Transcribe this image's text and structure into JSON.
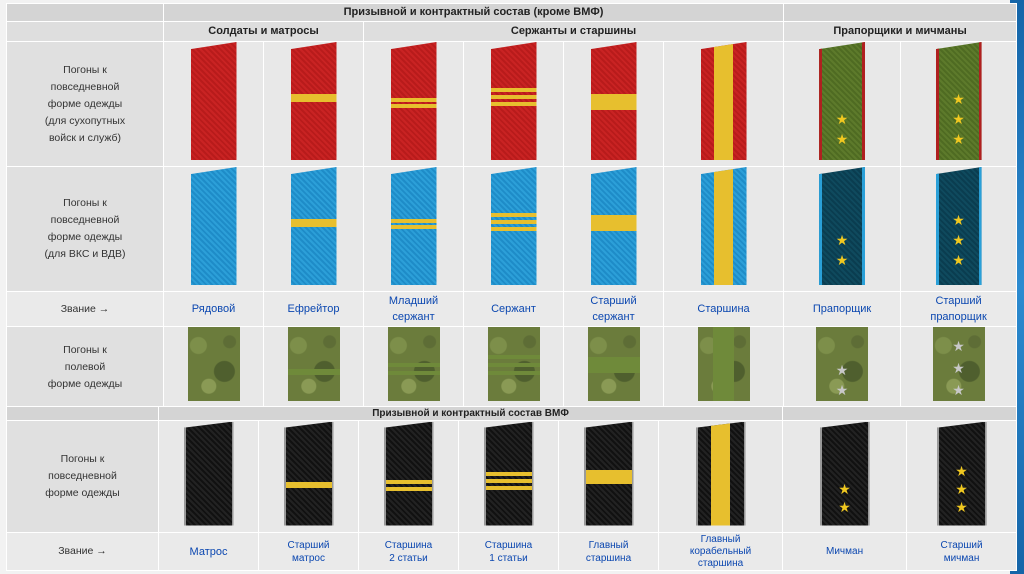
{
  "table1": {
    "title": "Призывной и контрактный состав (кроме ВМФ)",
    "groups": [
      "Солдаты и матросы",
      "Сержанты и старшины",
      "Прапорщики и мичманы"
    ],
    "row_labels": {
      "ground": [
        "Погоны к",
        "повседневной",
        "форме одежды",
        "(для сухопутных",
        "войск и служб)"
      ],
      "vks": [
        "Погоны к",
        "повседневной",
        "форме одежды",
        "(для ВКС и ВДВ)"
      ],
      "rank_header": "Звание →",
      "field": [
        "Погоны к",
        "полевой",
        "форме одежды"
      ]
    },
    "ranks": [
      [
        "Рядовой"
      ],
      [
        "Ефрейтор"
      ],
      [
        "Младший",
        "сержант"
      ],
      [
        "Сержант"
      ],
      [
        "Старший",
        "сержант"
      ],
      [
        "Старшина"
      ],
      [
        "Прапорщик"
      ],
      [
        "Старший",
        "прапорщик"
      ]
    ]
  },
  "table2": {
    "title": "Призывной и контрактный состав ВМФ",
    "row_labels": {
      "navy": [
        "Погоны к",
        "повседневной",
        "форме одежды"
      ],
      "rank_header": "Звание →"
    },
    "ranks": [
      [
        "Матрос"
      ],
      [
        "Старший",
        "матрос"
      ],
      [
        "Старшина",
        "2 статьи"
      ],
      [
        "Старшина",
        "1 статьи"
      ],
      [
        "Главный",
        "старшина"
      ],
      [
        "Главный",
        "корабельный",
        "старшина"
      ],
      [
        "Мичман"
      ],
      [
        "Старший",
        "мичман"
      ]
    ]
  },
  "colors": {
    "ground": "#c92323",
    "vks": "#2c9fd8",
    "stripe": "#e7bf2e",
    "link": "#0b47b0"
  }
}
